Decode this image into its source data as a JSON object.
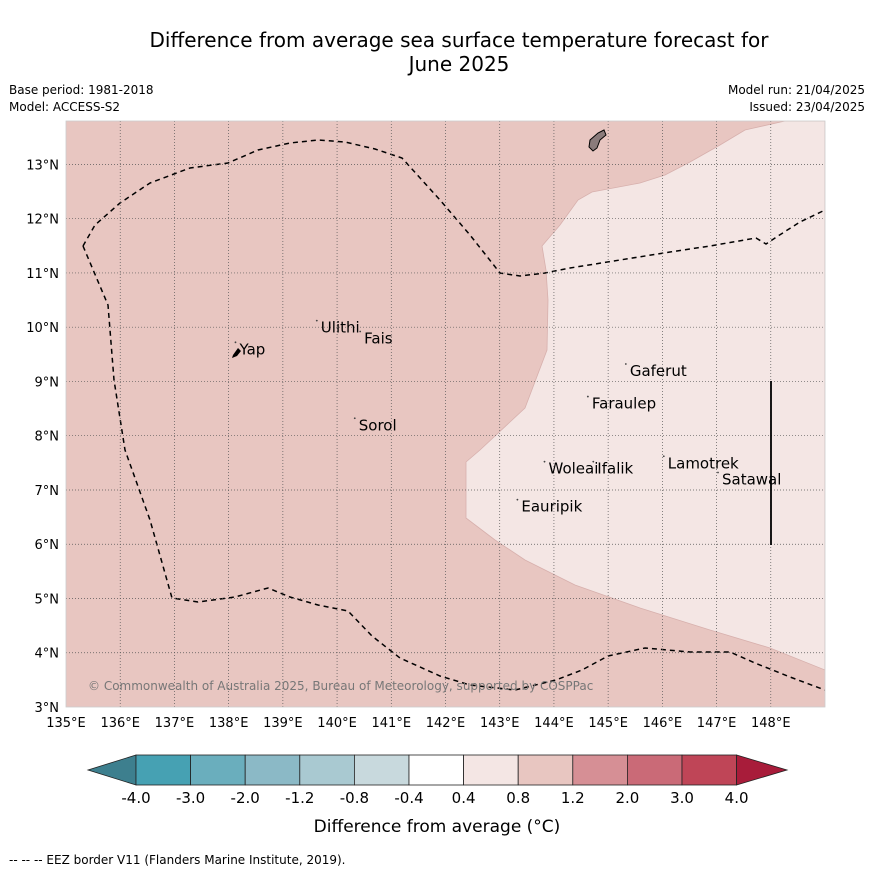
{
  "title_line1": "Difference from average sea surface temperature forecast for",
  "title_line2": "June 2025",
  "base_period": "Base period: 1981-2018",
  "model": "Model: ACCESS-S2",
  "model_run": "Model run: 21/04/2025",
  "issued": "Issued: 23/04/2025",
  "copyright": "© Commonwealth of Australia 2025, Bureau of Meteorology, supported by COSPPac",
  "legend_note": "--  --  -- EEZ border V11 (Flanders Marine Institute, 2019).",
  "colorbar": {
    "label": "Difference from average (°C)",
    "ticks": [
      "-4.0",
      "-3.0",
      "-2.0",
      "-1.2",
      "-0.8",
      "-0.4",
      "0.4",
      "0.8",
      "1.2",
      "2.0",
      "3.0",
      "4.0"
    ],
    "colors": [
      "#3d7f8e",
      "#46a1b3",
      "#6aaebd",
      "#8bb9c6",
      "#a9c9d1",
      "#c8d9dd",
      "#ffffff",
      "#f4e6e4",
      "#e8c6c1",
      "#d68f95",
      "#ca6a77",
      "#bf4557",
      "#a81c3a"
    ]
  },
  "map": {
    "lon_range": [
      135,
      149
    ],
    "lat_range": [
      3,
      13.8
    ],
    "lon_ticks": [
      "135°E",
      "136°E",
      "137°E",
      "138°E",
      "139°E",
      "140°E",
      "141°E",
      "142°E",
      "143°E",
      "144°E",
      "145°E",
      "146°E",
      "147°E",
      "148°E"
    ],
    "lat_ticks": [
      "3°N",
      "4°N",
      "5°N",
      "6°N",
      "7°N",
      "8°N",
      "9°N",
      "10°N",
      "11°N",
      "12°N",
      "13°N"
    ],
    "places": [
      {
        "name": "Ulithi",
        "lon": 139.7,
        "lat": 9.9
      },
      {
        "name": "Fais",
        "lon": 140.5,
        "lat": 9.7
      },
      {
        "name": "Yap",
        "lon": 138.2,
        "lat": 9.5
      },
      {
        "name": "Gaferut",
        "lon": 145.4,
        "lat": 9.1
      },
      {
        "name": "Faraulep",
        "lon": 144.7,
        "lat": 8.5
      },
      {
        "name": "Sorol",
        "lon": 140.4,
        "lat": 8.1
      },
      {
        "name": "Lamotrek",
        "lon": 146.1,
        "lat": 7.4
      },
      {
        "name": "Woleai",
        "lon": 143.9,
        "lat": 7.3
      },
      {
        "name": "Ifalik",
        "lon": 144.8,
        "lat": 7.3
      },
      {
        "name": "Satawal",
        "lon": 147.1,
        "lat": 7.1
      },
      {
        "name": "Eauripik",
        "lon": 143.4,
        "lat": 6.6
      }
    ]
  }
}
